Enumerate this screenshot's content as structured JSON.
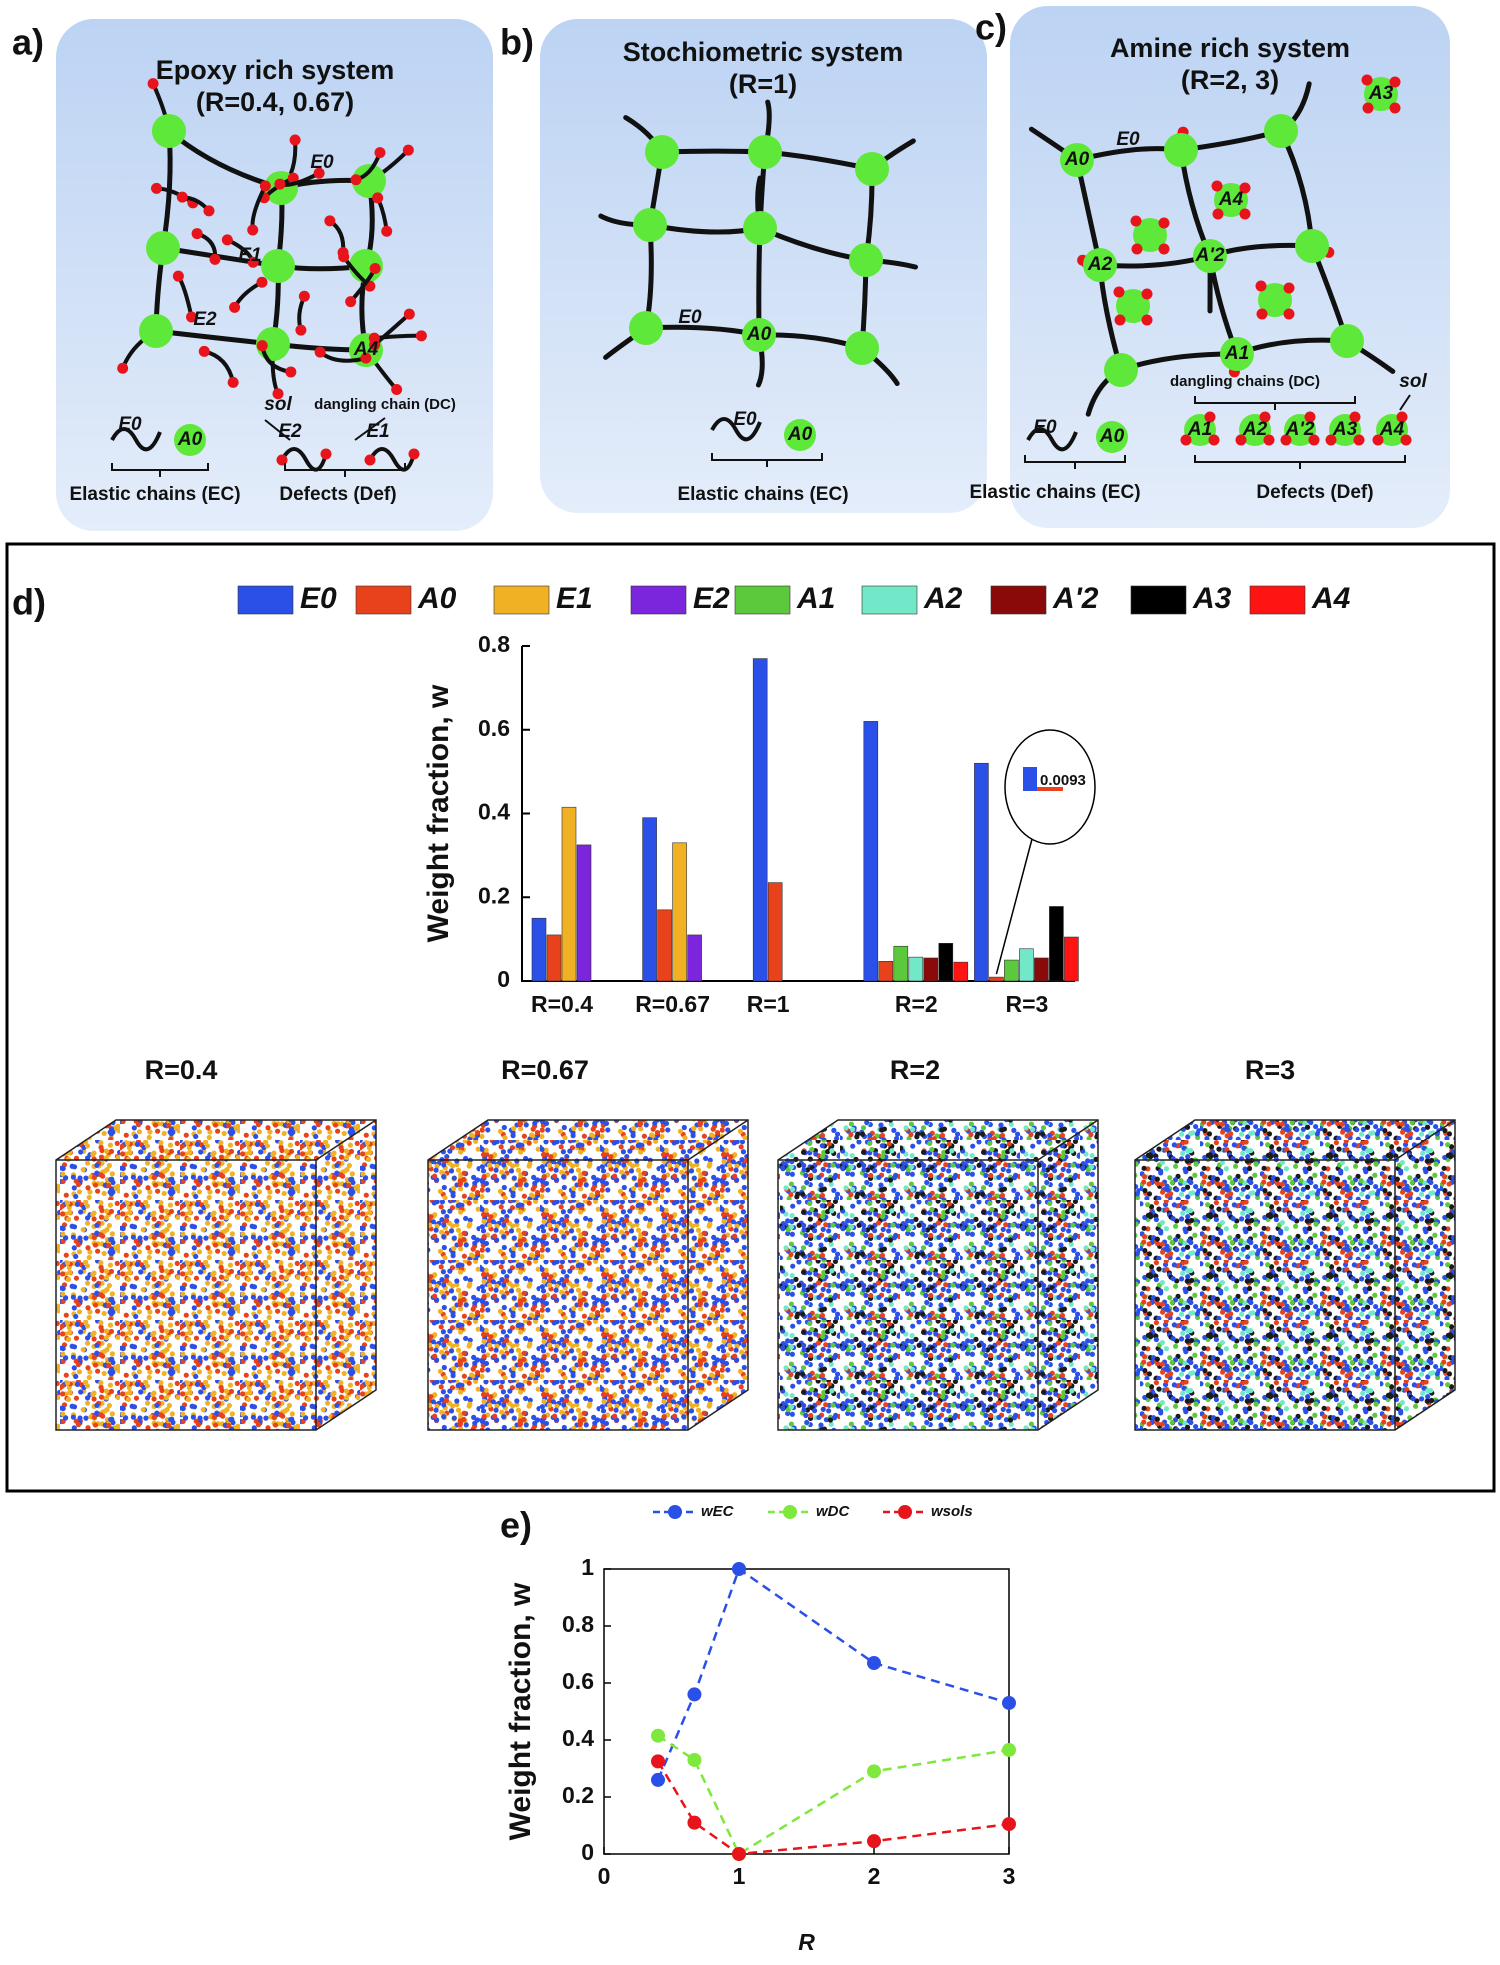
{
  "panels": [
    {
      "label": "a)",
      "title": "Epoxy rich system",
      "subtitle": "(R=0.4, 0.67)",
      "annotations": [
        "E0",
        "E1",
        "E2",
        "A4",
        "sol",
        "dangling chain (DC)"
      ],
      "legend": [
        "E0",
        "A0",
        "E2",
        "E1"
      ],
      "captions": [
        "Elastic chains (EC)",
        "Defects (Def)"
      ]
    },
    {
      "label": "b)",
      "title": "Stochiometric system",
      "subtitle": "(R=1)",
      "annotations": [
        "E0",
        "A0"
      ],
      "legend": [
        "E0",
        "A0"
      ],
      "captions": [
        "Elastic chains (EC)"
      ]
    },
    {
      "label": "c)",
      "title": "Amine rich system",
      "subtitle": "(R=2, 3)",
      "annotations": [
        "E0",
        "A0",
        "A3",
        "A4",
        "A2",
        "A'2",
        "A1",
        "dangling chains (DC)",
        "sol"
      ],
      "legend": [
        "E0",
        "A0",
        "A1",
        "A2",
        "A'2",
        "A3",
        "A4"
      ],
      "captions": [
        "Elastic chains (EC)",
        "Defects (Def)"
      ]
    }
  ],
  "d_label": "d)",
  "e_label": "e)",
  "renderings": [
    "R=0.4",
    "R=0.67",
    "R=2",
    "R=3"
  ],
  "chart_data": [
    {
      "type": "bar",
      "ylabel": "Weight fraction, w",
      "categories": [
        "R=0.4",
        "R=0.67",
        "R=1",
        "R=2",
        "R=3"
      ],
      "ylim": [
        0,
        0.8
      ],
      "yticks": [
        0,
        0.2,
        0.4,
        0.6,
        0.8
      ],
      "series": [
        {
          "name": "E0",
          "color": "#2b50e8",
          "values": [
            0.15,
            0.39,
            0.77,
            0.62,
            0.52
          ]
        },
        {
          "name": "A0",
          "color": "#e8421c",
          "values": [
            0.11,
            0.17,
            0.235,
            0.047,
            0.0093
          ],
          "value_labels": [
            null,
            null,
            null,
            null,
            "0.0093"
          ]
        },
        {
          "name": "E1",
          "color": "#f0b224",
          "values": [
            0.415,
            0.33,
            null,
            null,
            null
          ]
        },
        {
          "name": "E2",
          "color": "#7b25dc",
          "values": [
            0.325,
            0.11,
            null,
            null,
            null
          ]
        },
        {
          "name": "A1",
          "color": "#5cc83c",
          "values": [
            null,
            null,
            null,
            0.083,
            0.05
          ]
        },
        {
          "name": "A2",
          "color": "#72e8c8",
          "values": [
            null,
            null,
            null,
            0.057,
            0.077
          ]
        },
        {
          "name": "A'2",
          "color": "#8a0a0a",
          "values": [
            null,
            null,
            null,
            0.055,
            0.055
          ]
        },
        {
          "name": "A3",
          "color": "#000000",
          "values": [
            null,
            null,
            null,
            0.09,
            0.178
          ]
        },
        {
          "name": "A4",
          "color": "#ff1414",
          "values": [
            null,
            null,
            null,
            0.045,
            0.105
          ]
        }
      ]
    },
    {
      "type": "line",
      "ylabel": "Weight fraction, w",
      "xlabel": "R",
      "x": [
        0.4,
        0.67,
        1,
        2,
        3
      ],
      "xlim": [
        0,
        3
      ],
      "xticks": [
        0,
        1,
        2,
        3
      ],
      "ylim": [
        0,
        1
      ],
      "yticks": [
        0,
        0.2,
        0.4,
        0.6,
        0.8,
        1
      ],
      "series": [
        {
          "name": "wEC",
          "color": "#2b50e8",
          "values": [
            0.26,
            0.56,
            1.0,
            0.67,
            0.53
          ]
        },
        {
          "name": "wDC",
          "color": "#7ee83c",
          "values": [
            0.415,
            0.33,
            0.0,
            0.29,
            0.365
          ]
        },
        {
          "name": "wsols",
          "color": "#e8141c",
          "values": [
            0.325,
            0.11,
            0.0,
            0.045,
            0.105
          ]
        }
      ]
    }
  ]
}
